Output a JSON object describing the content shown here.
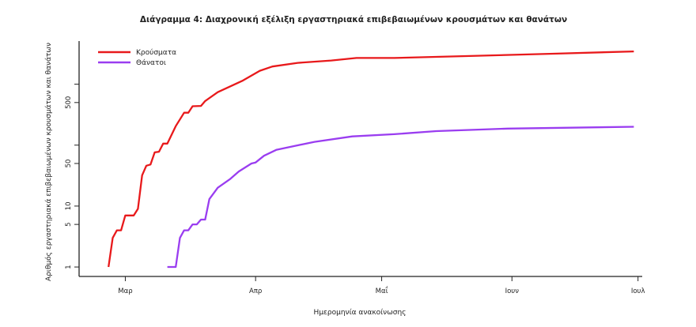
{
  "chart_data": {
    "type": "line",
    "title": "Διάγραμμα 4: Διαχρονική εξέλιξη εργαστηριακά επιβεβαιωμένων κρουσμάτων και θανάτων",
    "xlabel": "Ημερομηνία ανακοίνωσης",
    "ylabel": "Αριθμός εργαστηριακά επιβεβαιωμένων κρουσμάτων και θανάτων",
    "y_scale": "log",
    "ylim": [
      0.7,
      5100
    ],
    "xlim": [
      "02-19",
      "07-02"
    ],
    "y_ticks": [
      1,
      5,
      10,
      50,
      100,
      500,
      1000
    ],
    "y_tick_labels": [
      "1",
      "5",
      "10",
      "50",
      "",
      "500",
      ""
    ],
    "x_ticks": [
      "03-01",
      "04-01",
      "05-01",
      "06-01",
      "07-01"
    ],
    "x_tick_labels": [
      "Μαρ",
      "Απρ",
      "Μαΐ",
      "Ιουν",
      "Ιουλ"
    ],
    "grid": false,
    "legend_position": "top-left",
    "series": [
      {
        "name": "Κρούσματα",
        "color": "#e8191b",
        "points": [
          [
            "02-26",
            1
          ],
          [
            "02-27",
            3
          ],
          [
            "02-28",
            4
          ],
          [
            "02-29",
            4
          ],
          [
            "03-01",
            7
          ],
          [
            "03-03",
            7
          ],
          [
            "03-04",
            9
          ],
          [
            "03-05",
            32
          ],
          [
            "03-06",
            46
          ],
          [
            "03-07",
            48
          ],
          [
            "03-08",
            76
          ],
          [
            "03-09",
            78
          ],
          [
            "03-10",
            106
          ],
          [
            "03-11",
            106
          ],
          [
            "03-13",
            205
          ],
          [
            "03-15",
            340
          ],
          [
            "03-16",
            340
          ],
          [
            "03-17",
            435
          ],
          [
            "03-19",
            440
          ],
          [
            "03-20",
            530
          ],
          [
            "03-23",
            740
          ],
          [
            "03-29",
            1150
          ],
          [
            "04-02",
            1660
          ],
          [
            "04-05",
            1950
          ],
          [
            "04-11",
            2240
          ],
          [
            "04-19",
            2450
          ],
          [
            "04-25",
            2690
          ],
          [
            "05-04",
            2690
          ],
          [
            "05-22",
            2900
          ],
          [
            "06-10",
            3150
          ],
          [
            "06-30",
            3450
          ]
        ]
      },
      {
        "name": "Θάνατοι",
        "color": "#9a3df0",
        "points": [
          [
            "03-11",
            1
          ],
          [
            "03-13",
            1
          ],
          [
            "03-14",
            3
          ],
          [
            "03-15",
            4
          ],
          [
            "03-16",
            4
          ],
          [
            "03-17",
            5
          ],
          [
            "03-18",
            5
          ],
          [
            "03-19",
            6
          ],
          [
            "03-20",
            6
          ],
          [
            "03-21",
            13
          ],
          [
            "03-23",
            20
          ],
          [
            "03-26",
            28
          ],
          [
            "03-28",
            37
          ],
          [
            "03-31",
            50
          ],
          [
            "04-01",
            52
          ],
          [
            "04-03",
            67
          ],
          [
            "04-06",
            84
          ],
          [
            "04-10",
            96
          ],
          [
            "04-15",
            113
          ],
          [
            "04-24",
            139
          ],
          [
            "05-04",
            151
          ],
          [
            "05-14",
            170
          ],
          [
            "05-31",
            187
          ],
          [
            "06-30",
            200
          ]
        ]
      }
    ]
  }
}
